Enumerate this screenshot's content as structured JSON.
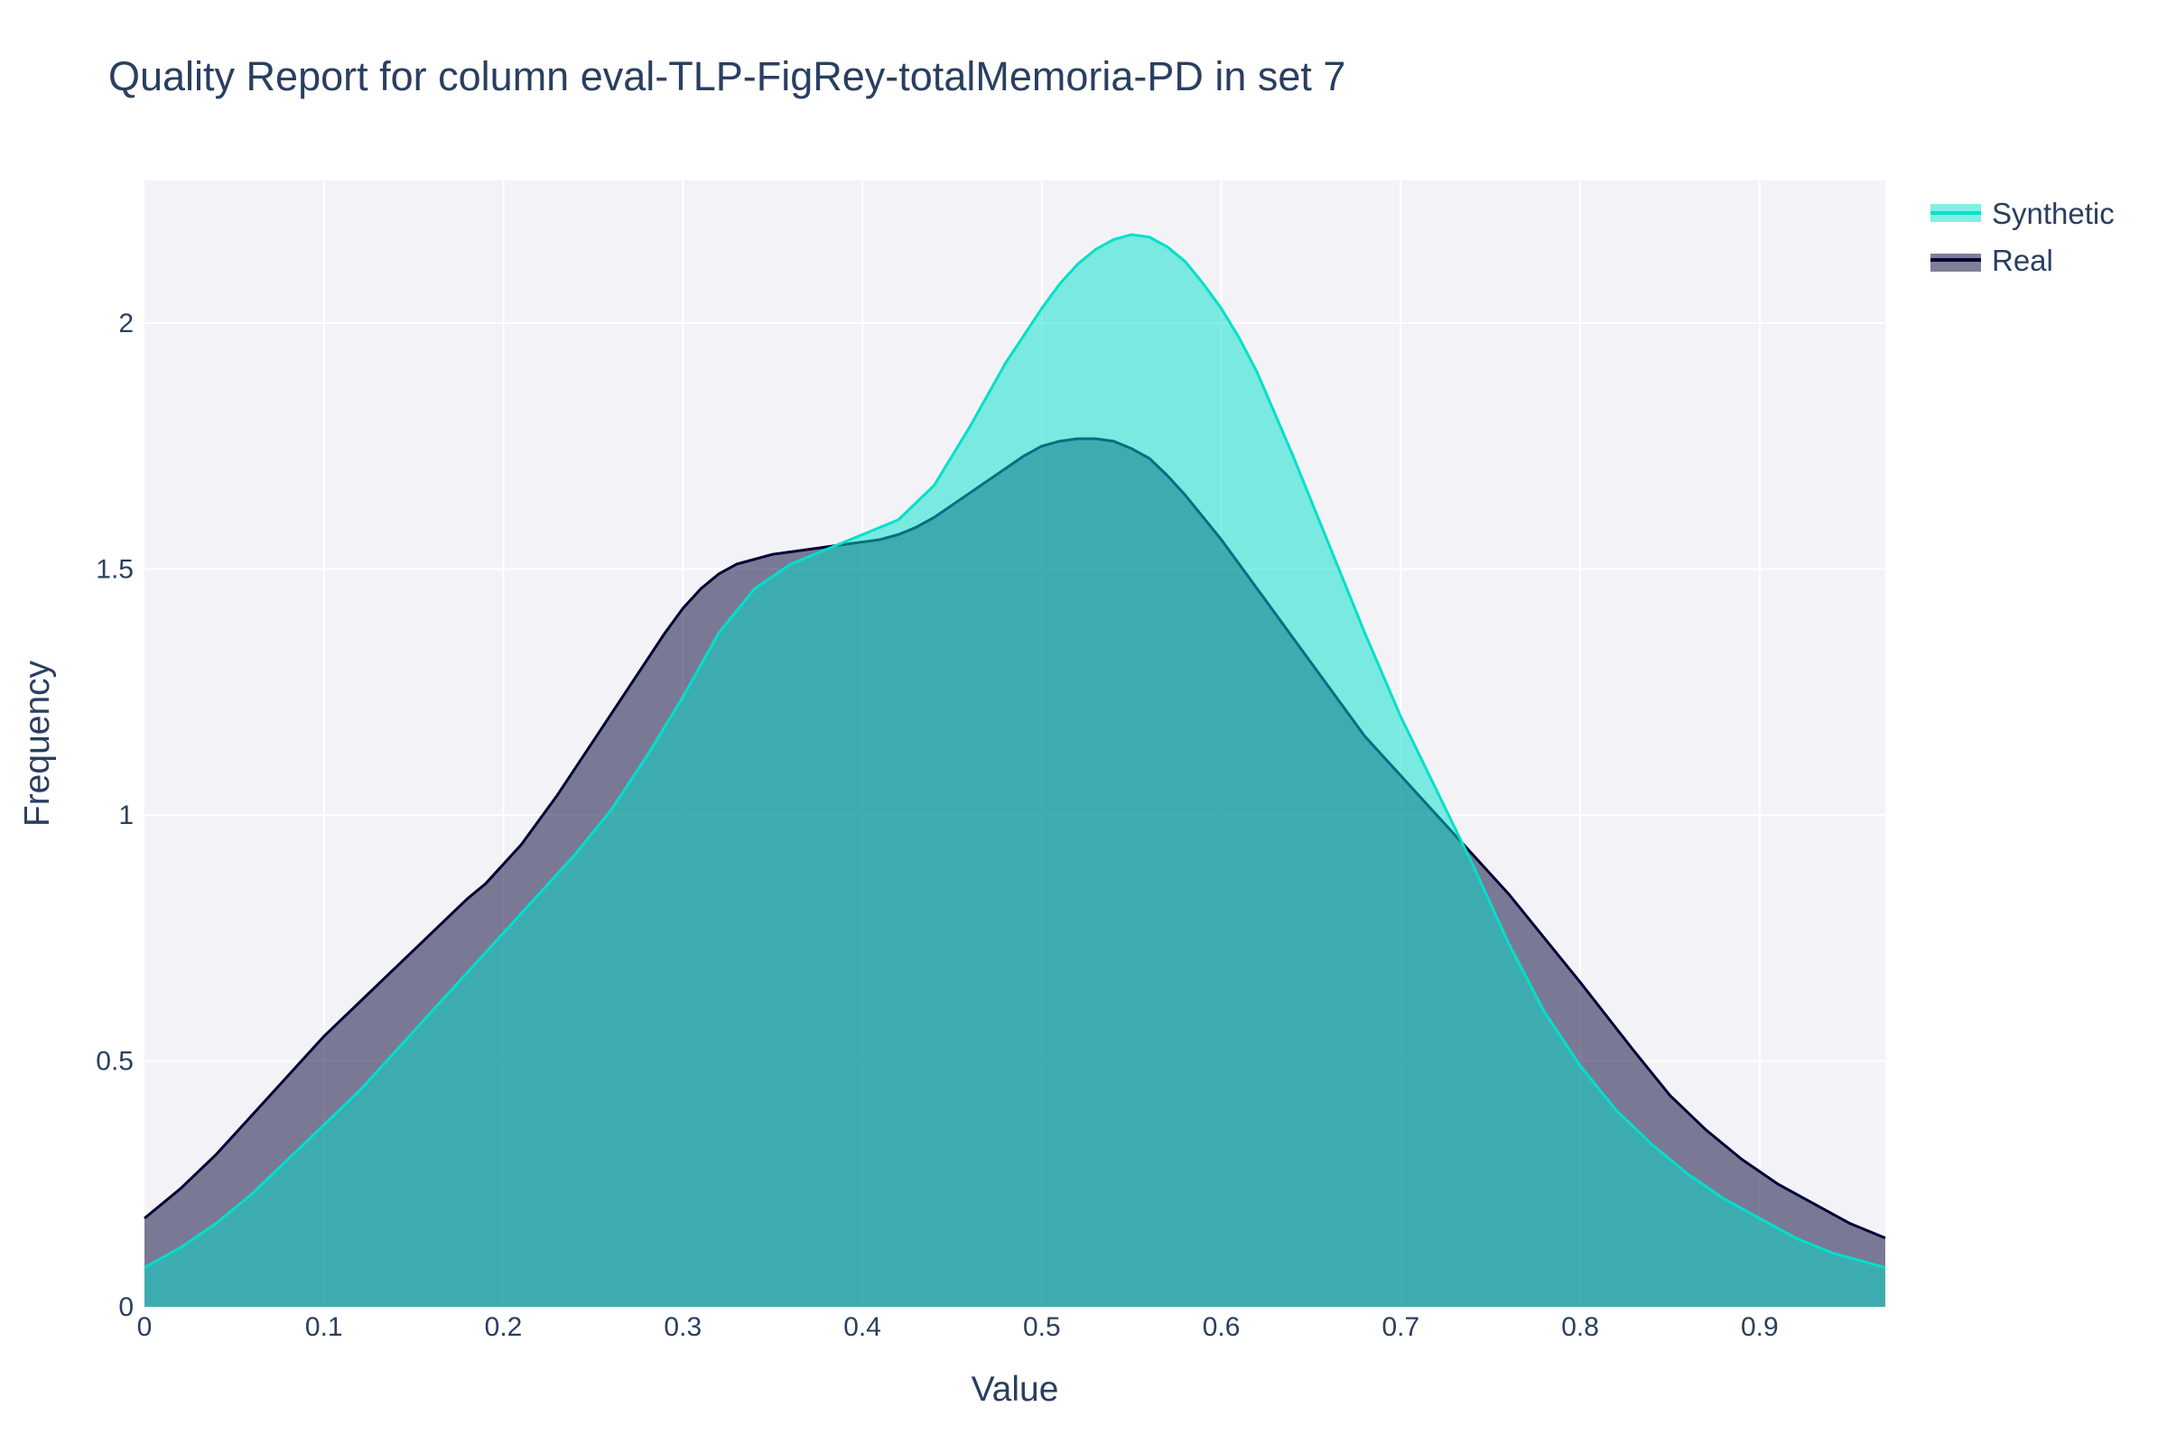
{
  "chart_data": {
    "type": "area",
    "title": "Quality Report for column eval-TLP-FigRey-totalMemoria-PD in set 7",
    "xlabel": "Value",
    "ylabel": "Frequency",
    "xlim": [
      0,
      0.97
    ],
    "ylim": [
      0,
      2.29
    ],
    "x_ticks": [
      0,
      0.1,
      0.2,
      0.3,
      0.4,
      0.5,
      0.6,
      0.7,
      0.8,
      0.9
    ],
    "x_tick_labels": [
      "0",
      "0.1",
      "0.2",
      "0.3",
      "0.4",
      "0.5",
      "0.6",
      "0.7",
      "0.8",
      "0.9"
    ],
    "y_ticks": [
      0,
      0.5,
      1,
      1.5,
      2
    ],
    "y_tick_labels": [
      "0",
      "0.5",
      "1",
      "1.5",
      "2"
    ],
    "grid": true,
    "legend_position": "top-right",
    "series": [
      {
        "name": "Real",
        "color": "#000036",
        "fill_color": "rgba(0,0,54,0.5)",
        "x": [
          0,
          0.02,
          0.04,
          0.06,
          0.08,
          0.1,
          0.12,
          0.14,
          0.16,
          0.18,
          0.19,
          0.21,
          0.23,
          0.25,
          0.27,
          0.29,
          0.3,
          0.31,
          0.32,
          0.33,
          0.34,
          0.35,
          0.36,
          0.37,
          0.38,
          0.39,
          0.4,
          0.41,
          0.42,
          0.43,
          0.44,
          0.45,
          0.46,
          0.47,
          0.48,
          0.49,
          0.5,
          0.51,
          0.52,
          0.53,
          0.54,
          0.55,
          0.56,
          0.57,
          0.58,
          0.6,
          0.62,
          0.64,
          0.66,
          0.68,
          0.7,
          0.72,
          0.74,
          0.76,
          0.78,
          0.8,
          0.83,
          0.85,
          0.87,
          0.89,
          0.91,
          0.93,
          0.95,
          0.97
        ],
        "values": [
          0.18,
          0.24,
          0.31,
          0.39,
          0.47,
          0.55,
          0.62,
          0.69,
          0.76,
          0.83,
          0.86,
          0.94,
          1.04,
          1.15,
          1.26,
          1.37,
          1.42,
          1.46,
          1.49,
          1.51,
          1.52,
          1.53,
          1.535,
          1.54,
          1.545,
          1.55,
          1.555,
          1.56,
          1.57,
          1.585,
          1.605,
          1.63,
          1.655,
          1.68,
          1.705,
          1.73,
          1.75,
          1.76,
          1.765,
          1.765,
          1.76,
          1.745,
          1.725,
          1.69,
          1.65,
          1.56,
          1.46,
          1.36,
          1.26,
          1.16,
          1.08,
          1.0,
          0.92,
          0.84,
          0.75,
          0.66,
          0.52,
          0.43,
          0.36,
          0.3,
          0.25,
          0.21,
          0.17,
          0.14
        ]
      },
      {
        "name": "Synthetic",
        "color": "#01e0c9",
        "fill_color": "rgba(1,224,201,0.5)",
        "x": [
          0,
          0.02,
          0.04,
          0.06,
          0.08,
          0.1,
          0.12,
          0.14,
          0.16,
          0.18,
          0.2,
          0.22,
          0.24,
          0.26,
          0.28,
          0.3,
          0.32,
          0.34,
          0.36,
          0.38,
          0.4,
          0.42,
          0.44,
          0.46,
          0.48,
          0.5,
          0.51,
          0.52,
          0.53,
          0.54,
          0.55,
          0.56,
          0.57,
          0.58,
          0.59,
          0.6,
          0.61,
          0.62,
          0.64,
          0.66,
          0.68,
          0.7,
          0.72,
          0.74,
          0.76,
          0.78,
          0.8,
          0.82,
          0.84,
          0.86,
          0.88,
          0.9,
          0.92,
          0.94,
          0.97
        ],
        "values": [
          0.08,
          0.12,
          0.17,
          0.23,
          0.3,
          0.37,
          0.44,
          0.52,
          0.6,
          0.68,
          0.76,
          0.84,
          0.92,
          1.01,
          1.12,
          1.24,
          1.37,
          1.46,
          1.51,
          1.54,
          1.57,
          1.6,
          1.67,
          1.79,
          1.92,
          2.03,
          2.08,
          2.12,
          2.15,
          2.17,
          2.18,
          2.175,
          2.155,
          2.125,
          2.08,
          2.03,
          1.97,
          1.9,
          1.73,
          1.55,
          1.37,
          1.2,
          1.05,
          0.9,
          0.74,
          0.6,
          0.49,
          0.4,
          0.33,
          0.27,
          0.22,
          0.18,
          0.14,
          0.11,
          0.08
        ]
      }
    ]
  }
}
